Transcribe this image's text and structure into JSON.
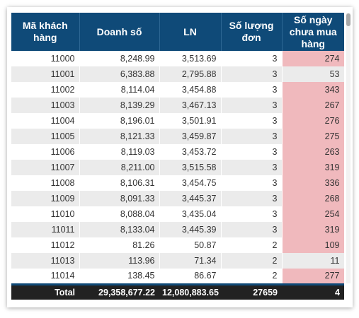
{
  "table": {
    "headers": [
      "Mã khách hàng",
      "Doanh số",
      "LN",
      "Số lượng đơn",
      "Số ngày chưa mua hàng"
    ],
    "rows": [
      [
        "11000",
        "8,248.99",
        "3,513.69",
        "3",
        "274"
      ],
      [
        "11001",
        "6,383.88",
        "2,795.88",
        "3",
        "53"
      ],
      [
        "11002",
        "8,114.04",
        "3,454.88",
        "3",
        "343"
      ],
      [
        "11003",
        "8,139.29",
        "3,467.13",
        "3",
        "267"
      ],
      [
        "11004",
        "8,196.01",
        "3,501.91",
        "3",
        "276"
      ],
      [
        "11005",
        "8,121.33",
        "3,459.87",
        "3",
        "275"
      ],
      [
        "11006",
        "8,119.03",
        "3,453.72",
        "3",
        "263"
      ],
      [
        "11007",
        "8,211.00",
        "3,515.58",
        "3",
        "319"
      ],
      [
        "11008",
        "8,106.31",
        "3,454.75",
        "3",
        "336"
      ],
      [
        "11009",
        "8,091.33",
        "3,445.37",
        "3",
        "268"
      ],
      [
        "11010",
        "8,088.04",
        "3,435.04",
        "3",
        "254"
      ],
      [
        "11011",
        "8,133.04",
        "3,445.39",
        "3",
        "319"
      ],
      [
        "11012",
        "81.26",
        "50.87",
        "2",
        "109"
      ],
      [
        "11013",
        "113.96",
        "71.34",
        "2",
        "11"
      ],
      [
        "11014",
        "138.45",
        "86.67",
        "2",
        "277"
      ]
    ],
    "highlight_rows": [
      0,
      2,
      3,
      4,
      5,
      6,
      7,
      8,
      9,
      10,
      11,
      12,
      14
    ],
    "highlight_color": "#f0b9bd",
    "header_color": "#0f4a78",
    "total": {
      "label": "Total",
      "values": [
        "29,358,677.22",
        "12,080,883.65",
        "27659",
        "4"
      ]
    }
  }
}
